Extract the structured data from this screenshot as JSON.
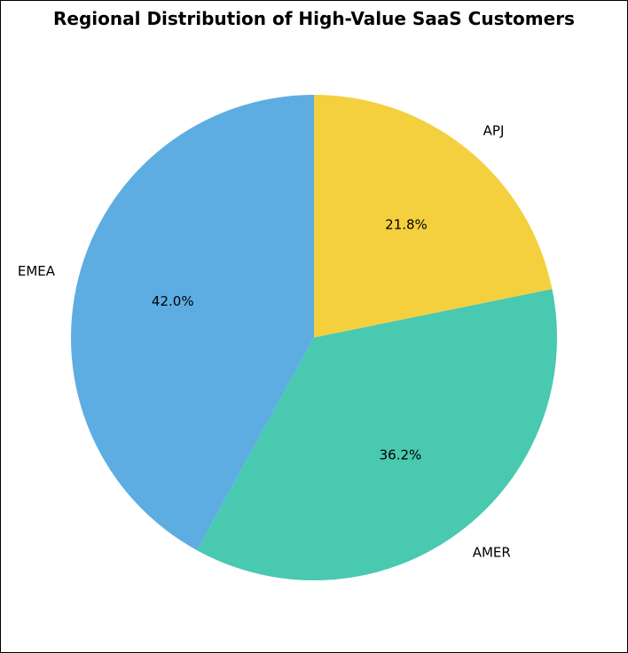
{
  "chart_data": {
    "type": "pie",
    "title": "Regional Distribution of High-Value SaaS Customers",
    "start_angle_deg": 90,
    "direction": "clockwise",
    "slices": [
      {
        "label": "APJ",
        "value": 21.8,
        "pct_label": "21.8%",
        "color": "#F4D03F"
      },
      {
        "label": "AMER",
        "value": 36.2,
        "pct_label": "36.2%",
        "color": "#48C9B0"
      },
      {
        "label": "EMEA",
        "value": 42.0,
        "pct_label": "42.0%",
        "color": "#5DADE2"
      }
    ]
  }
}
